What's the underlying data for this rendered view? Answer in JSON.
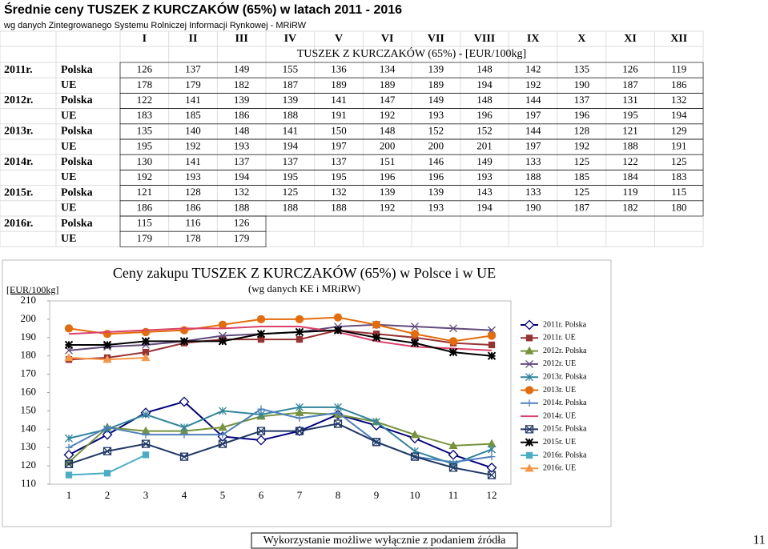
{
  "header": {
    "title": "Średnie ceny TUSZEK Z KURCZAKÓW (65%) w latach 2011 - 2016",
    "subtitle": "wg danych Zintegrowanego Systemu Rolniczej Informacji Rynkowej - MRiRW"
  },
  "table": {
    "months": [
      "I",
      "II",
      "III",
      "IV",
      "V",
      "VI",
      "VII",
      "VIII",
      "IX",
      "X",
      "XI",
      "XII"
    ],
    "unit_header": "TUSZEK Z KURCZAKÓW (65%) - [EUR/100kg]",
    "rows": [
      {
        "year": "2011r.",
        "country": "Polska",
        "values": [
          126,
          137,
          149,
          155,
          136,
          134,
          139,
          148,
          142,
          135,
          126,
          119
        ]
      },
      {
        "country": "UE",
        "values": [
          178,
          179,
          182,
          187,
          189,
          189,
          189,
          194,
          192,
          190,
          187,
          186
        ]
      },
      {
        "year": "2012r.",
        "country": "Polska",
        "values": [
          122,
          141,
          139,
          139,
          141,
          147,
          149,
          148,
          144,
          137,
          131,
          132
        ]
      },
      {
        "country": "UE",
        "values": [
          183,
          185,
          186,
          188,
          191,
          192,
          193,
          196,
          197,
          196,
          195,
          194
        ]
      },
      {
        "year": "2013r.",
        "country": "Polska",
        "values": [
          135,
          140,
          148,
          141,
          150,
          148,
          152,
          152,
          144,
          128,
          121,
          129
        ]
      },
      {
        "country": "UE",
        "values": [
          195,
          192,
          193,
          194,
          197,
          200,
          200,
          201,
          197,
          192,
          188,
          191
        ]
      },
      {
        "year": "2014r.",
        "country": "Polska",
        "values": [
          130,
          141,
          137,
          137,
          137,
          151,
          146,
          149,
          133,
          125,
          122,
          125
        ]
      },
      {
        "country": "UE",
        "values": [
          192,
          193,
          194,
          195,
          195,
          196,
          196,
          193,
          188,
          185,
          184,
          183
        ]
      },
      {
        "year": "2015r.",
        "country": "Polska",
        "values": [
          121,
          128,
          132,
          125,
          132,
          139,
          139,
          143,
          133,
          125,
          119,
          115
        ]
      },
      {
        "country": "UE",
        "values": [
          186,
          186,
          188,
          188,
          188,
          192,
          193,
          194,
          190,
          187,
          182,
          180
        ]
      },
      {
        "year": "2016r.",
        "country": "Polska",
        "values": [
          115,
          116,
          126
        ]
      },
      {
        "country": "UE",
        "values": [
          179,
          178,
          179
        ]
      }
    ]
  },
  "chart_data": {
    "type": "line",
    "title": "Ceny zakupu TUSZEK Z KURCZAKÓW (65%) w Polsce i w UE",
    "subtitle": "(wg danych KE i MRiRW)",
    "y_label": "[EUR/100kg]",
    "categories": [
      "1",
      "2",
      "3",
      "4",
      "5",
      "6",
      "7",
      "8",
      "9",
      "10",
      "11",
      "12"
    ],
    "ylim": [
      110,
      210
    ],
    "yticks": [
      110,
      120,
      130,
      140,
      150,
      160,
      170,
      180,
      190,
      200,
      210
    ],
    "legend": "right",
    "series": [
      {
        "name": "2011r. Polska",
        "color": "#000080",
        "marker": "diamond",
        "values": [
          126,
          137,
          149,
          155,
          136,
          134,
          139,
          148,
          142,
          135,
          126,
          119
        ]
      },
      {
        "name": "2011r. UE",
        "color": "#993333",
        "marker": "square",
        "values": [
          178,
          179,
          182,
          187,
          189,
          189,
          189,
          194,
          192,
          190,
          187,
          186
        ]
      },
      {
        "name": "2012r. Polska",
        "color": "#77933c",
        "marker": "triangle",
        "values": [
          122,
          141,
          139,
          139,
          141,
          147,
          149,
          148,
          144,
          137,
          131,
          132
        ]
      },
      {
        "name": "2012r. UE",
        "color": "#604a7b",
        "marker": "x",
        "values": [
          183,
          185,
          186,
          188,
          191,
          192,
          193,
          196,
          197,
          196,
          195,
          194
        ]
      },
      {
        "name": "2013r. Polska",
        "color": "#31859c",
        "marker": "star",
        "values": [
          135,
          140,
          148,
          141,
          150,
          148,
          152,
          152,
          144,
          128,
          121,
          129
        ]
      },
      {
        "name": "2013r. UE",
        "color": "#e46c0a",
        "marker": "circle",
        "values": [
          195,
          192,
          193,
          194,
          197,
          200,
          200,
          201,
          197,
          192,
          188,
          191
        ]
      },
      {
        "name": "2014r. Polska",
        "color": "#4f81bd",
        "marker": "plus",
        "values": [
          130,
          141,
          137,
          137,
          137,
          151,
          146,
          149,
          133,
          125,
          122,
          125
        ]
      },
      {
        "name": "2014r. UE",
        "color": "#d9426a",
        "marker": "none",
        "values": [
          192,
          193,
          194,
          195,
          195,
          196,
          196,
          193,
          188,
          185,
          184,
          183
        ]
      },
      {
        "name": "2015r. Polska",
        "color": "#1f3864",
        "marker": "xsquare",
        "values": [
          121,
          128,
          132,
          125,
          132,
          139,
          139,
          143,
          133,
          125,
          119,
          115
        ]
      },
      {
        "name": "2015r. UE",
        "color": "#000000",
        "marker": "dotstar",
        "values": [
          186,
          186,
          188,
          188,
          188,
          192,
          193,
          194,
          190,
          187,
          182,
          180
        ]
      },
      {
        "name": "2016r. Polska",
        "color": "#4bacc6",
        "marker": "square",
        "values": [
          115,
          116,
          126,
          null,
          null,
          null,
          null,
          null,
          null,
          null,
          null,
          null
        ]
      },
      {
        "name": "2016r. UE",
        "color": "#f79646",
        "marker": "triangle",
        "values": [
          179,
          178,
          179,
          null,
          null,
          null,
          null,
          null,
          null,
          null,
          null,
          null
        ]
      }
    ]
  },
  "footer": {
    "note": "Wykorzystanie możliwe wyłącznie z podaniem źródła",
    "page": "11"
  }
}
